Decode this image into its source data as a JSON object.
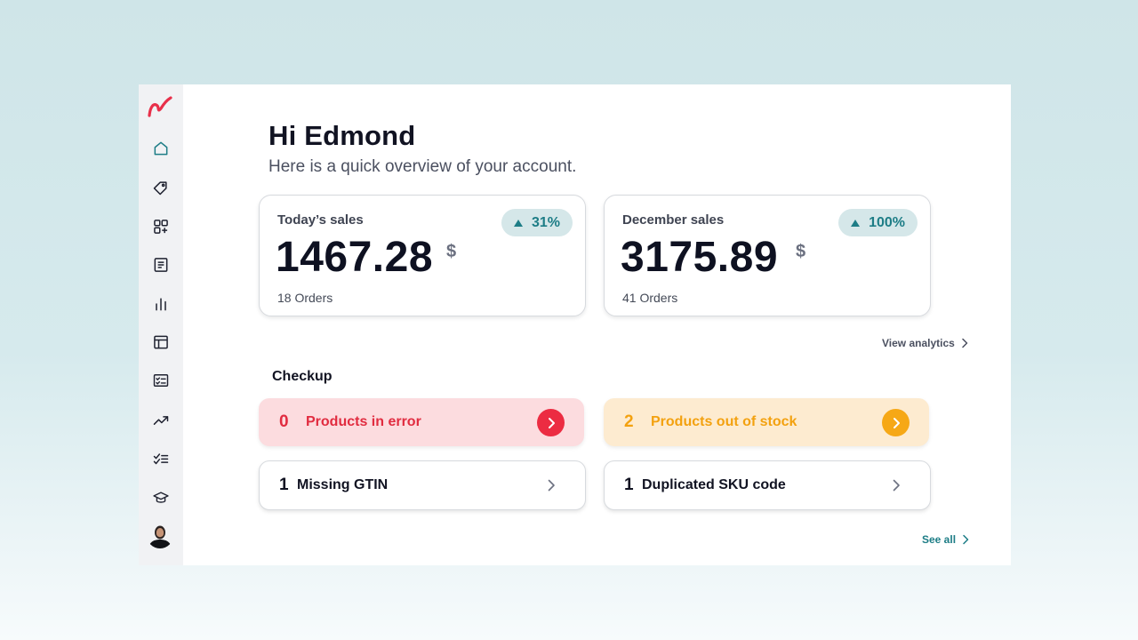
{
  "greeting": "Hi Edmond",
  "subtitle": "Here is a quick overview of your account.",
  "sidebar": {
    "logo_icon": "brand-logo-icon",
    "items": [
      {
        "name": "home",
        "icon": "home-icon",
        "active": true
      },
      {
        "name": "tags",
        "icon": "tag-icon"
      },
      {
        "name": "apps",
        "icon": "apps-add-icon"
      },
      {
        "name": "documents",
        "icon": "document-icon"
      },
      {
        "name": "statistics",
        "icon": "bar-chart-icon"
      },
      {
        "name": "layout",
        "icon": "layout-icon"
      },
      {
        "name": "checklist",
        "icon": "checklist-card-icon"
      },
      {
        "name": "trends",
        "icon": "trending-up-icon"
      },
      {
        "name": "tasks",
        "icon": "task-list-icon"
      },
      {
        "name": "academy",
        "icon": "graduation-cap-icon"
      }
    ]
  },
  "stats": [
    {
      "label": "Today’s sales",
      "value": "1467.28",
      "currency": "$",
      "orders": "18 Orders",
      "trend": "31%"
    },
    {
      "label": "December sales",
      "value": "3175.89",
      "currency": "$",
      "orders": "41 Orders",
      "trend": "100%"
    }
  ],
  "view_analytics": "View analytics",
  "checkup": {
    "title": "Checkup",
    "items": [
      {
        "count": "0",
        "label": "Products in error",
        "status": "error"
      },
      {
        "count": "2",
        "label": "Products out of stock",
        "status": "warning"
      },
      {
        "count": "1",
        "label": "Missing GTIN",
        "status": "neutral"
      },
      {
        "count": "1",
        "label": "Duplicated SKU code",
        "status": "neutral"
      }
    ],
    "see_all": "See all"
  },
  "colors": {
    "accent": "#1d7d86",
    "error": "#e12c40",
    "warning": "#f3a10f",
    "brand": "#e8304a"
  }
}
